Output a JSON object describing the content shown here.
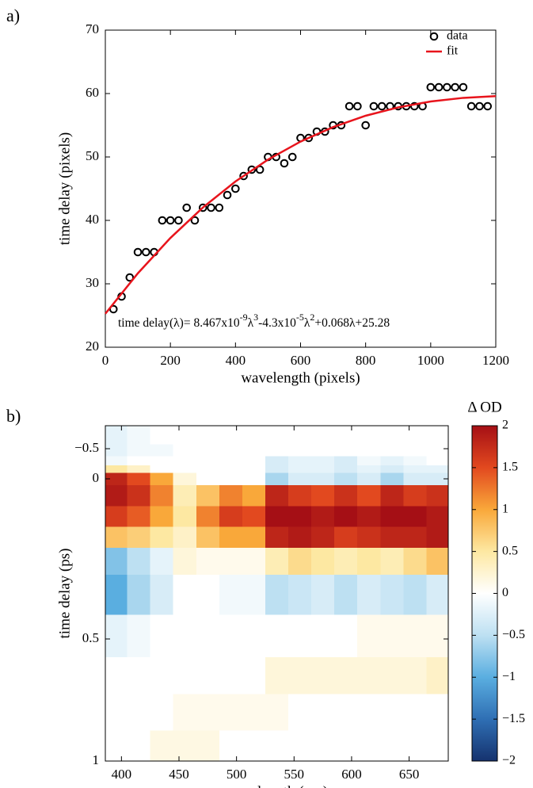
{
  "chart_data": [
    {
      "type": "scatter",
      "panel_label": "a)",
      "xlabel": "wavelength (pixels)",
      "ylabel": "time delay (pixels)",
      "xlim": [
        0,
        1200
      ],
      "ylim": [
        20,
        70
      ],
      "xticks": [
        0,
        200,
        400,
        600,
        800,
        1000,
        1200
      ],
      "yticks": [
        20,
        30,
        40,
        50,
        60,
        70
      ],
      "legend": "upper right",
      "annotation": [
        {
          "text": "time delay(λ)= 8.467x10",
          "sup": false
        },
        {
          "text": "-9",
          "sup": true
        },
        {
          "text": "λ",
          "sup": false
        },
        {
          "text": "3",
          "sup": true
        },
        {
          "text": "-4.3x10",
          "sup": false
        },
        {
          "text": "-5",
          "sup": true
        },
        {
          "text": "λ",
          "sup": false
        },
        {
          "text": "2",
          "sup": true
        },
        {
          "text": "+0.068λ+25.28",
          "sup": false
        }
      ],
      "series": [
        {
          "name": "data",
          "color": "#000000",
          "marker": "circle",
          "x": [
            25,
            50,
            75,
            100,
            125,
            150,
            175,
            200,
            225,
            250,
            275,
            300,
            325,
            350,
            375,
            400,
            425,
            450,
            475,
            500,
            525,
            550,
            575,
            600,
            625,
            650,
            675,
            700,
            725,
            750,
            775,
            800,
            825,
            850,
            875,
            900,
            925,
            950,
            975,
            1000,
            1025,
            1050,
            1075,
            1100,
            1125,
            1150,
            1175
          ],
          "values": [
            26,
            28,
            31,
            35,
            35,
            35,
            40,
            40,
            40,
            42,
            40,
            42,
            42,
            42,
            44,
            45,
            47,
            48,
            48,
            50,
            50,
            49,
            50,
            53,
            53,
            54,
            54,
            55,
            55,
            58,
            58,
            55,
            58,
            58,
            58,
            58,
            58,
            58,
            58,
            61,
            61,
            61,
            61,
            61,
            58,
            58,
            58
          ]
        },
        {
          "name": "fit",
          "color": "#e8141c",
          "marker": "line",
          "x": [
            0,
            100,
            200,
            300,
            400,
            500,
            600,
            700,
            800,
            900,
            1000,
            1100,
            1200
          ],
          "values": [
            25.28,
            31.66,
            37.23,
            42.04,
            46.14,
            49.59,
            52.43,
            54.71,
            56.5,
            57.82,
            58.75,
            59.32,
            59.59
          ]
        }
      ]
    },
    {
      "type": "heatmap",
      "panel_label": "b)",
      "xlabel": "wavelength (nm)",
      "ylabel": "time delay (ps)",
      "xlim": [
        386,
        684
      ],
      "ylim": [
        -0.6,
        1
      ],
      "xticks": [
        400,
        450,
        500,
        550,
        600,
        650
      ],
      "yticks": [
        {
          "value": -0.5,
          "label": "−0.5"
        },
        0,
        0.5,
        1
      ],
      "x": [
        395,
        415,
        435,
        455,
        475,
        495,
        515,
        535,
        555,
        575,
        595,
        615,
        635,
        655,
        675
      ],
      "y": [
        -0.55,
        -0.45,
        -0.3,
        -0.15,
        -0.05,
        0.05,
        0.12,
        0.18,
        0.25,
        0.35,
        0.5,
        0.65,
        0.8,
        0.95
      ],
      "z": [
        [
          -0.2,
          -0.1,
          0,
          0,
          0,
          0,
          0,
          0,
          0,
          0,
          0,
          0,
          0,
          0,
          0
        ],
        [
          -0.2,
          -0.1,
          -0.1,
          0,
          0,
          0,
          0,
          0,
          0,
          0,
          0,
          0,
          0,
          0,
          0
        ],
        [
          -0.1,
          0,
          0,
          0,
          0,
          0,
          0,
          -0.3,
          -0.2,
          -0.2,
          -0.3,
          -0.1,
          -0.2,
          -0.1,
          0
        ],
        [
          0.5,
          0.3,
          0,
          0,
          0,
          0,
          0,
          -0.3,
          -0.2,
          -0.2,
          -0.3,
          -0.2,
          -0.3,
          -0.2,
          -0.2
        ],
        [
          1.8,
          1.5,
          1.0,
          0.2,
          0,
          0,
          0,
          -0.6,
          -0.3,
          -0.3,
          -0.5,
          -0.3,
          -0.6,
          -0.3,
          -0.3
        ],
        [
          1.9,
          1.7,
          1.2,
          0.4,
          0.8,
          1.2,
          1.0,
          1.8,
          1.6,
          1.5,
          1.7,
          1.5,
          1.8,
          1.6,
          1.7
        ],
        [
          1.6,
          1.4,
          1.0,
          0.5,
          1.2,
          1.6,
          1.5,
          2,
          2,
          1.9,
          2,
          1.9,
          2,
          2,
          1.9
        ],
        [
          0.8,
          0.7,
          0.5,
          0.3,
          0.8,
          1.0,
          1.0,
          1.8,
          1.9,
          1.8,
          1.6,
          1.7,
          1.8,
          1.8,
          1.9
        ],
        [
          -0.8,
          -0.5,
          -0.2,
          0.2,
          0.1,
          0.1,
          0.1,
          0.4,
          0.6,
          0.5,
          0.4,
          0.5,
          0.4,
          0.6,
          0.8
        ],
        [
          -1,
          -0.6,
          -0.3,
          0,
          0,
          -0.1,
          -0.1,
          -0.5,
          -0.4,
          -0.3,
          -0.5,
          -0.3,
          -0.4,
          -0.5,
          -0.3
        ],
        [
          -0.2,
          -0.1,
          0,
          0,
          0,
          0,
          0,
          0,
          0,
          0,
          0,
          0.1,
          0.1,
          0.1,
          0.1
        ],
        [
          0,
          0,
          0,
          0,
          0,
          0,
          0,
          0.2,
          0.2,
          0.2,
          0.2,
          0.2,
          0.2,
          0.2,
          0.3
        ],
        [
          0,
          0,
          0,
          0.1,
          0.1,
          0.1,
          0.1,
          0.1,
          0,
          0,
          0,
          0,
          0,
          0,
          0
        ],
        [
          0,
          0,
          0.15,
          0.15,
          0.15,
          0,
          0,
          0,
          0,
          0,
          0,
          0,
          0,
          0,
          0
        ]
      ],
      "colormap": [
        "#15326e",
        "#2f6fb4",
        "#5aaee0",
        "#bde0f2",
        "#ffffff",
        "#fde8a2",
        "#f9a83a",
        "#e2491f",
        "#a50f15"
      ],
      "clim": [
        -2,
        2
      ],
      "colorbar": {
        "title": "Δ OD",
        "ticks": [
          {
            "value": -2,
            "label": "−2"
          },
          {
            "value": -1.5,
            "label": "−1.5"
          },
          {
            "value": -1,
            "label": "−1"
          },
          {
            "value": -0.5,
            "label": "−0.5"
          },
          0,
          0.5,
          1,
          1.5,
          2
        ]
      }
    }
  ]
}
